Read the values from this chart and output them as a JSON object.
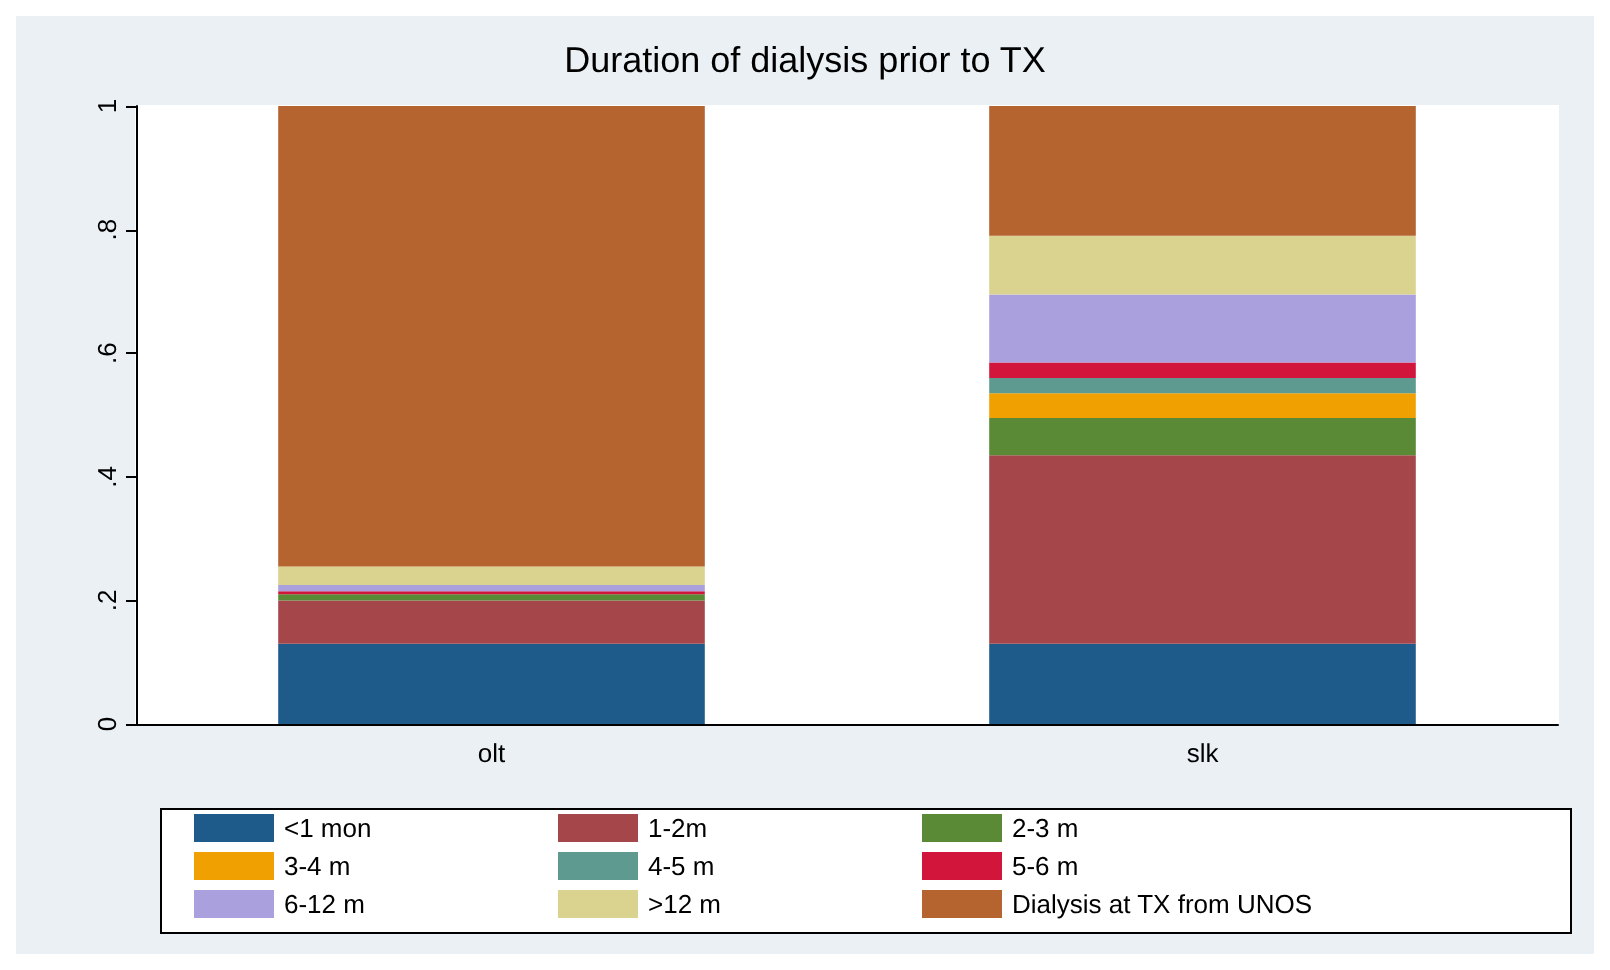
{
  "chart_data": {
    "type": "bar",
    "stacked": true,
    "title": "Duration of dialysis prior to TX",
    "categories": [
      "olt",
      "slk"
    ],
    "series": [
      {
        "name": "<1 mon",
        "color": "#1f5b8a",
        "values": [
          0.13,
          0.13
        ]
      },
      {
        "name": "1-2m",
        "color": "#a4464a",
        "values": [
          0.07,
          0.305
        ]
      },
      {
        "name": "2-3 m",
        "color": "#5a8a35",
        "values": [
          0.01,
          0.06
        ]
      },
      {
        "name": "3-4 m",
        "color": "#f0a000",
        "values": [
          0,
          0.04
        ]
      },
      {
        "name": "4-5 m",
        "color": "#5f9a90",
        "values": [
          0,
          0.025
        ]
      },
      {
        "name": "5-6 m",
        "color": "#d2153a",
        "values": [
          0.005,
          0.025
        ]
      },
      {
        "name": "6-12 m",
        "color": "#a9a0dd",
        "values": [
          0.01,
          0.11
        ]
      },
      {
        "name": ">12 m",
        "color": "#d9d38f",
        "values": [
          0.03,
          0.095
        ]
      },
      {
        "name": "Dialysis at TX from UNOS",
        "color": "#b5632f",
        "values": [
          0.745,
          0.21
        ]
      }
    ],
    "ylim": [
      0,
      1
    ],
    "yticks": [
      {
        "value": 0,
        "label": "0"
      },
      {
        "value": 0.2,
        "label": ".2"
      },
      {
        "value": 0.4,
        "label": ".4"
      },
      {
        "value": 0.6,
        "label": ".6"
      },
      {
        "value": 0.8,
        "label": ".8"
      },
      {
        "value": 1,
        "label": "1"
      }
    ],
    "legend": "bottom",
    "grid": false
  }
}
